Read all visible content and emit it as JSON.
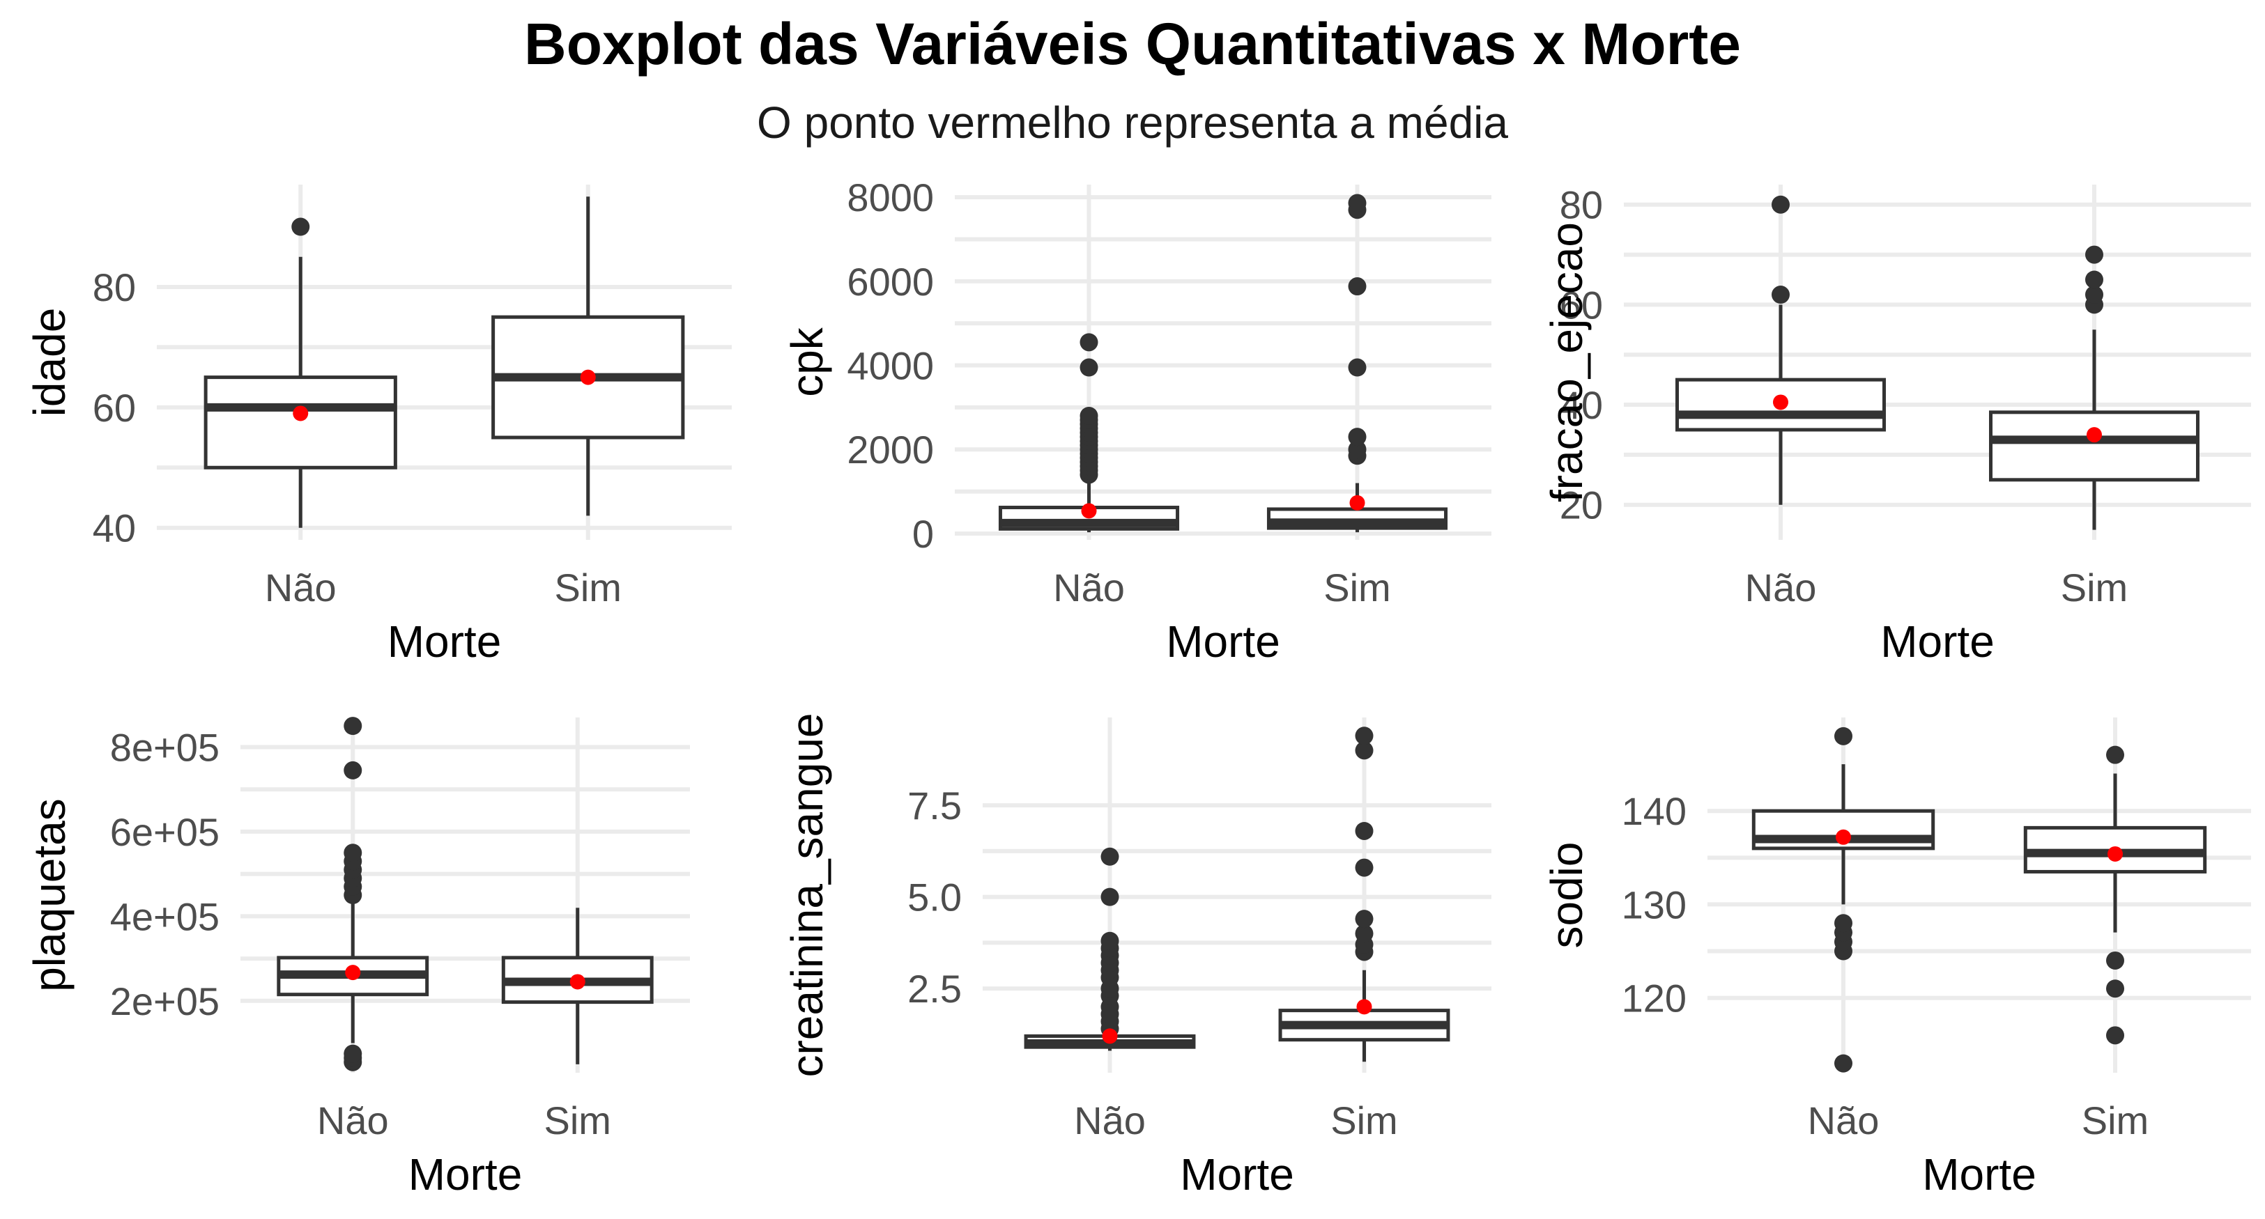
{
  "title": "Boxplot das Variáveis Quantitativas x Morte",
  "subtitle": "O ponto vermelho representa a média",
  "colors": {
    "box_stroke": "#333333",
    "mean_point": "#ff0000",
    "grid": "#ebebeb"
  },
  "chart_data": [
    {
      "type": "boxplot",
      "xlabel": "Morte",
      "ylabel": "idade",
      "categories": [
        "Não",
        "Sim"
      ],
      "ylim": [
        38,
        97
      ],
      "yticks": [
        40,
        60,
        80
      ],
      "ytick_labels": [
        "40",
        "60",
        "80"
      ],
      "groups": [
        {
          "category": "Não",
          "min": 40,
          "q1": 50,
          "median": 60,
          "q3": 65,
          "max": 85,
          "mean": 59,
          "outliers": [
            90
          ]
        },
        {
          "category": "Sim",
          "min": 42,
          "q1": 55,
          "median": 65,
          "q3": 75,
          "max": 95,
          "mean": 65,
          "outliers": []
        }
      ]
    },
    {
      "type": "boxplot",
      "xlabel": "Morte",
      "ylabel": "cpk",
      "categories": [
        "Não",
        "Sim"
      ],
      "ylim": [
        -150,
        8300
      ],
      "yticks": [
        0,
        2000,
        4000,
        6000,
        8000
      ],
      "ytick_labels": [
        "0",
        "2000",
        "4000",
        "6000",
        "8000"
      ],
      "groups": [
        {
          "category": "Não",
          "min": 30,
          "q1": 110,
          "median": 250,
          "q3": 620,
          "max": 1300,
          "mean": 540,
          "outliers": [
            1400,
            1500,
            1600,
            1700,
            1800,
            1900,
            2000,
            2100,
            2200,
            2300,
            2400,
            2500,
            2600,
            2700,
            2800,
            3950,
            4550
          ]
        },
        {
          "category": "Sim",
          "min": 30,
          "q1": 130,
          "median": 260,
          "q3": 580,
          "max": 1200,
          "mean": 730,
          "outliers": [
            1850,
            2000,
            2300,
            3950,
            5880,
            7700,
            7860
          ]
        }
      ]
    },
    {
      "type": "boxplot",
      "xlabel": "Morte",
      "ylabel": "fracao_ejecao",
      "categories": [
        "Não",
        "Sim"
      ],
      "ylim": [
        13,
        84
      ],
      "yticks": [
        20,
        40,
        60,
        80
      ],
      "ytick_labels": [
        "20",
        "40",
        "60",
        "80"
      ],
      "groups": [
        {
          "category": "Não",
          "min": 20,
          "q1": 35,
          "median": 38,
          "q3": 45,
          "max": 60,
          "mean": 40.5,
          "outliers": [
            62,
            80
          ]
        },
        {
          "category": "Sim",
          "min": 15,
          "q1": 25,
          "median": 33,
          "q3": 38.5,
          "max": 55,
          "mean": 34,
          "outliers": [
            60,
            62,
            65,
            70
          ]
        }
      ]
    },
    {
      "type": "boxplot",
      "xlabel": "Morte",
      "ylabel": "plaquetas",
      "categories": [
        "Não",
        "Sim"
      ],
      "ylim": [
        30000,
        870000
      ],
      "yticks": [
        200000,
        400000,
        600000,
        800000
      ],
      "ytick_labels": [
        "2e+05",
        "4e+05",
        "6e+05",
        "8e+05"
      ],
      "groups": [
        {
          "category": "Não",
          "min": 100000,
          "q1": 215000,
          "median": 262000,
          "q3": 302000,
          "max": 430000,
          "mean": 267000,
          "outliers": [
            55000,
            65000,
            75000,
            450000,
            470000,
            490000,
            510000,
            530000,
            550000,
            745000,
            850000
          ]
        },
        {
          "category": "Sim",
          "min": 50000,
          "q1": 197000,
          "median": 245000,
          "q3": 302000,
          "max": 420000,
          "mean": 245000,
          "outliers": []
        }
      ]
    },
    {
      "type": "boxplot",
      "xlabel": "Morte",
      "ylabel": "creatinina_sangue",
      "categories": [
        "Não",
        "Sim"
      ],
      "ylim": [
        0.2,
        9.9
      ],
      "yticks": [
        2.5,
        5.0,
        7.5
      ],
      "ytick_labels": [
        "2.5",
        "5.0",
        "7.5"
      ],
      "groups": [
        {
          "category": "Não",
          "min": 0.8,
          "q1": 0.9,
          "median": 1.0,
          "q3": 1.2,
          "max": 1.2,
          "mean": 1.2,
          "outliers": [
            1.4,
            1.6,
            1.8,
            2.0,
            2.3,
            2.5,
            2.8,
            3.0,
            3.2,
            3.4,
            3.6,
            3.8,
            5.0,
            6.1
          ]
        },
        {
          "category": "Sim",
          "min": 0.5,
          "q1": 1.1,
          "median": 1.5,
          "q3": 1.9,
          "max": 3.0,
          "mean": 2.0,
          "outliers": [
            3.5,
            3.7,
            4.0,
            4.4,
            5.8,
            6.8,
            9.0,
            9.4
          ]
        }
      ]
    },
    {
      "type": "boxplot",
      "xlabel": "Morte",
      "ylabel": "sodio",
      "categories": [
        "Não",
        "Sim"
      ],
      "ylim": [
        112,
        150
      ],
      "yticks": [
        120,
        130,
        140
      ],
      "ytick_labels": [
        "120",
        "130",
        "140"
      ],
      "groups": [
        {
          "category": "Não",
          "min": 130,
          "q1": 136,
          "median": 137,
          "q3": 140,
          "max": 145,
          "mean": 137.2,
          "outliers": [
            113,
            125,
            126,
            127,
            128,
            148
          ]
        },
        {
          "category": "Sim",
          "min": 127,
          "q1": 133.5,
          "median": 135.5,
          "q3": 138.2,
          "max": 144,
          "mean": 135.4,
          "outliers": [
            116,
            121,
            124,
            146
          ]
        }
      ]
    }
  ]
}
